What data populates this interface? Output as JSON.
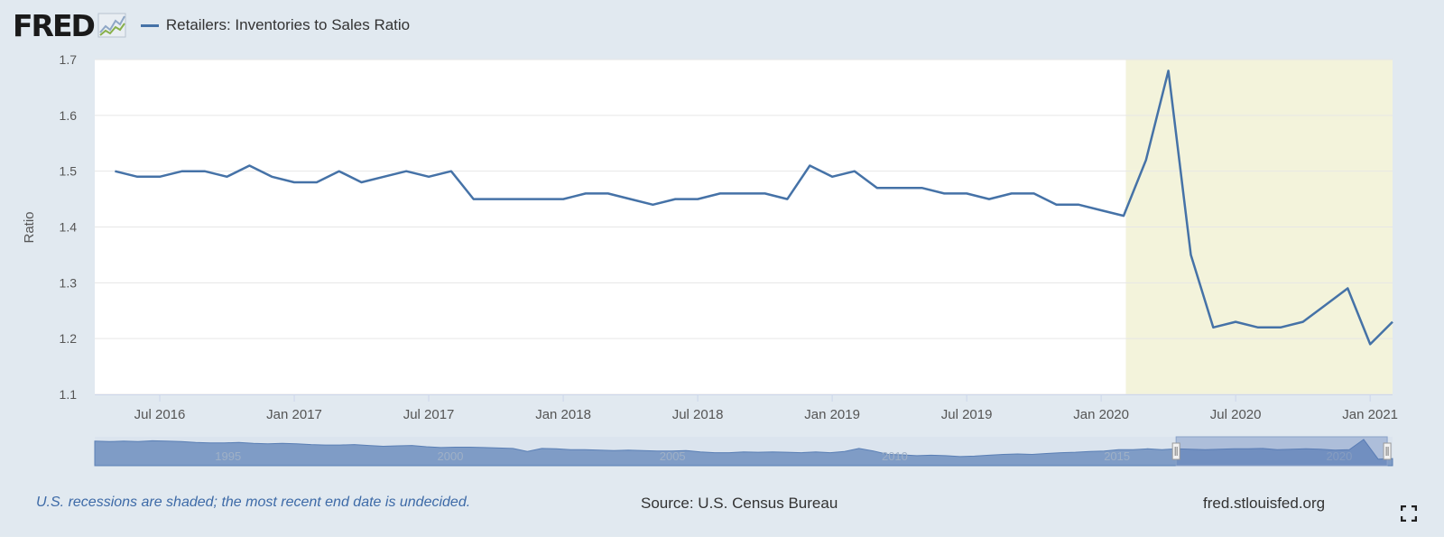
{
  "header": {
    "logo_text": "FRED",
    "series_legend": "Retailers: Inventories to Sales Ratio"
  },
  "footer": {
    "recession_note": "U.S. recessions are shaded; the most recent end date is undecided.",
    "source": "Source: U.S. Census Bureau",
    "site": "fred.stlouisfed.org"
  },
  "icons": {
    "logo": "line-chart-icon",
    "fullscreen": "fullscreen-icon"
  },
  "colors": {
    "line": "#4572a7",
    "recession": "#f3f3db",
    "navigator_fill": "#7f9cc6",
    "background": "#e1e9f0"
  },
  "chart_data": {
    "type": "line",
    "ylabel": "Ratio",
    "xlabel": "",
    "ylim": [
      1.1,
      1.7
    ],
    "yticks": [
      1.1,
      1.2,
      1.3,
      1.4,
      1.5,
      1.6,
      1.7
    ],
    "xlim": [
      "2016-04",
      "2021-02"
    ],
    "xticks": [
      {
        "date": "2016-07",
        "label": "Jul 2016"
      },
      {
        "date": "2017-01",
        "label": "Jan 2017"
      },
      {
        "date": "2017-07",
        "label": "Jul 2017"
      },
      {
        "date": "2018-01",
        "label": "Jan 2018"
      },
      {
        "date": "2018-07",
        "label": "Jul 2018"
      },
      {
        "date": "2019-01",
        "label": "Jan 2019"
      },
      {
        "date": "2019-07",
        "label": "Jul 2019"
      },
      {
        "date": "2020-01",
        "label": "Jan 2020"
      },
      {
        "date": "2020-07",
        "label": "Jul 2020"
      },
      {
        "date": "2021-01",
        "label": "Jan 2021"
      }
    ],
    "grid": true,
    "recession_shading": {
      "start": "2020-02",
      "end": "2021-02"
    },
    "series": [
      {
        "x": [
          "2016-05",
          "2016-06",
          "2016-07",
          "2016-08",
          "2016-09",
          "2016-10",
          "2016-11",
          "2016-12",
          "2017-01",
          "2017-02",
          "2017-03",
          "2017-04",
          "2017-05",
          "2017-06",
          "2017-07",
          "2017-08",
          "2017-09",
          "2017-10",
          "2017-11",
          "2017-12",
          "2018-01",
          "2018-02",
          "2018-03",
          "2018-04",
          "2018-05",
          "2018-06",
          "2018-07",
          "2018-08",
          "2018-09",
          "2018-10",
          "2018-11",
          "2018-12",
          "2019-01",
          "2019-02",
          "2019-03",
          "2019-04",
          "2019-05",
          "2019-06",
          "2019-07",
          "2019-08",
          "2019-09",
          "2019-10",
          "2019-11",
          "2019-12",
          "2020-01",
          "2020-02",
          "2020-03",
          "2020-04",
          "2020-05",
          "2020-06",
          "2020-07",
          "2020-08",
          "2020-09",
          "2020-10",
          "2020-11",
          "2020-12",
          "2021-01",
          "2021-02"
        ],
        "values": [
          1.5,
          1.49,
          1.49,
          1.5,
          1.5,
          1.49,
          1.51,
          1.49,
          1.48,
          1.48,
          1.5,
          1.48,
          1.49,
          1.5,
          1.49,
          1.5,
          1.45,
          1.45,
          1.45,
          1.45,
          1.45,
          1.46,
          1.46,
          1.45,
          1.44,
          1.45,
          1.45,
          1.46,
          1.46,
          1.46,
          1.45,
          1.51,
          1.49,
          1.5,
          1.47,
          1.47,
          1.47,
          1.46,
          1.46,
          1.45,
          1.46,
          1.46,
          1.44,
          1.44,
          1.43,
          1.42,
          1.52,
          1.68,
          1.35,
          1.22,
          1.23,
          1.22,
          1.22,
          1.23,
          1.26,
          1.29,
          1.19,
          1.23
        ]
      }
    ],
    "navigator": {
      "xlim": [
        1992,
        2021.2
      ],
      "tick_labels": [
        "1995",
        "2000",
        "2005",
        "2010",
        "2015",
        "2020"
      ],
      "selection": [
        2016.33,
        2021.08
      ],
      "values": [
        1.64,
        1.63,
        1.64,
        1.63,
        1.65,
        1.64,
        1.63,
        1.61,
        1.6,
        1.6,
        1.61,
        1.59,
        1.58,
        1.59,
        1.58,
        1.56,
        1.55,
        1.55,
        1.56,
        1.54,
        1.52,
        1.53,
        1.54,
        1.51,
        1.49,
        1.5,
        1.5,
        1.49,
        1.48,
        1.47,
        1.4,
        1.47,
        1.46,
        1.44,
        1.44,
        1.43,
        1.42,
        1.43,
        1.42,
        1.41,
        1.41,
        1.42,
        1.39,
        1.37,
        1.37,
        1.39,
        1.38,
        1.39,
        1.38,
        1.37,
        1.39,
        1.37,
        1.4,
        1.47,
        1.41,
        1.33,
        1.32,
        1.3,
        1.31,
        1.3,
        1.28,
        1.29,
        1.31,
        1.33,
        1.34,
        1.33,
        1.35,
        1.37,
        1.38,
        1.4,
        1.41,
        1.44,
        1.44,
        1.46,
        1.44,
        1.46,
        1.45,
        1.44,
        1.45,
        1.46,
        1.46,
        1.47,
        1.44,
        1.45,
        1.46,
        1.45,
        1.43,
        1.44,
        1.68,
        1.22,
        1.23
      ]
    }
  }
}
